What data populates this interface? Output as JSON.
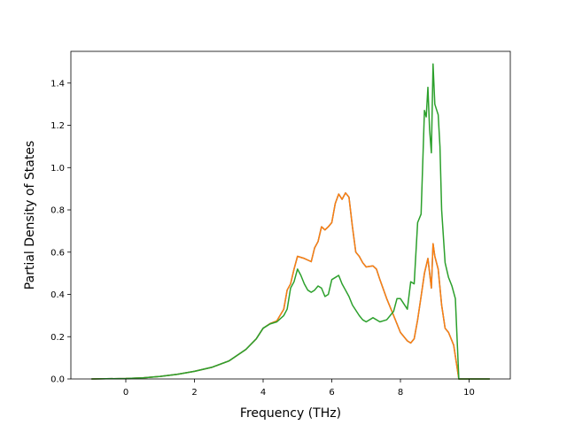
{
  "chart_data": {
    "type": "line",
    "xlabel": "Frequency (THz)",
    "ylabel": "Partial Density of States",
    "xlim": [
      -1.6,
      11.2
    ],
    "ylim": [
      0.0,
      1.55
    ],
    "xticks": [
      0,
      2,
      4,
      6,
      8,
      10
    ],
    "yticks": [
      0.0,
      0.2,
      0.4,
      0.6,
      0.8,
      1.0,
      1.2,
      1.4
    ],
    "grid": false,
    "legend": "none",
    "series": [
      {
        "color": "#1f77b4",
        "points": [
          [
            -1.0,
            0
          ],
          [
            0.0,
            0.002
          ],
          [
            0.5,
            0.005
          ],
          [
            1.0,
            0.012
          ],
          [
            1.5,
            0.022
          ],
          [
            2.0,
            0.036
          ],
          [
            2.5,
            0.055
          ],
          [
            3.0,
            0.085
          ],
          [
            3.5,
            0.14
          ],
          [
            3.8,
            0.19
          ],
          [
            4.0,
            0.24
          ],
          [
            4.2,
            0.262
          ],
          [
            4.4,
            0.275
          ],
          [
            4.6,
            0.33
          ],
          [
            4.7,
            0.42
          ],
          [
            4.8,
            0.45
          ],
          [
            4.9,
            0.52
          ],
          [
            5.0,
            0.58
          ],
          [
            5.2,
            0.57
          ],
          [
            5.4,
            0.555
          ],
          [
            5.5,
            0.62
          ],
          [
            5.6,
            0.65
          ],
          [
            5.7,
            0.72
          ],
          [
            5.8,
            0.705
          ],
          [
            5.9,
            0.72
          ],
          [
            6.0,
            0.74
          ],
          [
            6.1,
            0.83
          ],
          [
            6.2,
            0.875
          ],
          [
            6.3,
            0.85
          ],
          [
            6.4,
            0.88
          ],
          [
            6.5,
            0.86
          ],
          [
            6.6,
            0.72
          ],
          [
            6.7,
            0.6
          ],
          [
            6.8,
            0.58
          ],
          [
            6.9,
            0.55
          ],
          [
            7.0,
            0.53
          ],
          [
            7.2,
            0.535
          ],
          [
            7.3,
            0.52
          ],
          [
            7.4,
            0.47
          ],
          [
            7.6,
            0.38
          ],
          [
            7.8,
            0.3
          ],
          [
            8.0,
            0.22
          ],
          [
            8.2,
            0.18
          ],
          [
            8.3,
            0.17
          ],
          [
            8.4,
            0.19
          ],
          [
            8.5,
            0.28
          ],
          [
            8.6,
            0.39
          ],
          [
            8.7,
            0.5
          ],
          [
            8.8,
            0.57
          ],
          [
            8.9,
            0.43
          ],
          [
            8.95,
            0.64
          ],
          [
            9.0,
            0.58
          ],
          [
            9.1,
            0.52
          ],
          [
            9.2,
            0.35
          ],
          [
            9.3,
            0.24
          ],
          [
            9.4,
            0.22
          ],
          [
            9.55,
            0.16
          ],
          [
            9.7,
            0.0
          ],
          [
            10.6,
            0.0
          ]
        ]
      },
      {
        "color": "#ff7f0e",
        "points": [
          [
            -1.0,
            0
          ],
          [
            0.0,
            0.002
          ],
          [
            0.5,
            0.005
          ],
          [
            1.0,
            0.012
          ],
          [
            1.5,
            0.022
          ],
          [
            2.0,
            0.036
          ],
          [
            2.5,
            0.055
          ],
          [
            3.0,
            0.085
          ],
          [
            3.5,
            0.14
          ],
          [
            3.8,
            0.19
          ],
          [
            4.0,
            0.24
          ],
          [
            4.2,
            0.262
          ],
          [
            4.4,
            0.275
          ],
          [
            4.6,
            0.33
          ],
          [
            4.7,
            0.42
          ],
          [
            4.8,
            0.45
          ],
          [
            4.9,
            0.52
          ],
          [
            5.0,
            0.58
          ],
          [
            5.2,
            0.57
          ],
          [
            5.4,
            0.555
          ],
          [
            5.5,
            0.62
          ],
          [
            5.6,
            0.65
          ],
          [
            5.7,
            0.72
          ],
          [
            5.8,
            0.705
          ],
          [
            5.9,
            0.72
          ],
          [
            6.0,
            0.74
          ],
          [
            6.1,
            0.83
          ],
          [
            6.2,
            0.875
          ],
          [
            6.3,
            0.85
          ],
          [
            6.4,
            0.88
          ],
          [
            6.5,
            0.86
          ],
          [
            6.6,
            0.72
          ],
          [
            6.7,
            0.6
          ],
          [
            6.8,
            0.58
          ],
          [
            6.9,
            0.55
          ],
          [
            7.0,
            0.53
          ],
          [
            7.2,
            0.535
          ],
          [
            7.3,
            0.52
          ],
          [
            7.4,
            0.47
          ],
          [
            7.6,
            0.38
          ],
          [
            7.8,
            0.3
          ],
          [
            8.0,
            0.22
          ],
          [
            8.2,
            0.18
          ],
          [
            8.3,
            0.17
          ],
          [
            8.4,
            0.19
          ],
          [
            8.5,
            0.28
          ],
          [
            8.6,
            0.39
          ],
          [
            8.7,
            0.5
          ],
          [
            8.8,
            0.57
          ],
          [
            8.9,
            0.43
          ],
          [
            8.95,
            0.64
          ],
          [
            9.0,
            0.58
          ],
          [
            9.1,
            0.52
          ],
          [
            9.2,
            0.35
          ],
          [
            9.3,
            0.24
          ],
          [
            9.4,
            0.22
          ],
          [
            9.55,
            0.16
          ],
          [
            9.7,
            0.0
          ],
          [
            10.6,
            0.0
          ]
        ]
      },
      {
        "color": "#2ca02c",
        "points": [
          [
            -1.0,
            0
          ],
          [
            0.0,
            0.002
          ],
          [
            0.5,
            0.005
          ],
          [
            1.0,
            0.012
          ],
          [
            1.5,
            0.022
          ],
          [
            2.0,
            0.036
          ],
          [
            2.5,
            0.055
          ],
          [
            3.0,
            0.085
          ],
          [
            3.5,
            0.14
          ],
          [
            3.8,
            0.19
          ],
          [
            4.0,
            0.24
          ],
          [
            4.2,
            0.26
          ],
          [
            4.4,
            0.27
          ],
          [
            4.6,
            0.3
          ],
          [
            4.7,
            0.33
          ],
          [
            4.8,
            0.43
          ],
          [
            4.9,
            0.46
          ],
          [
            5.0,
            0.52
          ],
          [
            5.1,
            0.49
          ],
          [
            5.2,
            0.45
          ],
          [
            5.3,
            0.42
          ],
          [
            5.4,
            0.41
          ],
          [
            5.5,
            0.42
          ],
          [
            5.6,
            0.44
          ],
          [
            5.7,
            0.43
          ],
          [
            5.8,
            0.39
          ],
          [
            5.9,
            0.4
          ],
          [
            6.0,
            0.47
          ],
          [
            6.2,
            0.49
          ],
          [
            6.3,
            0.45
          ],
          [
            6.4,
            0.42
          ],
          [
            6.5,
            0.39
          ],
          [
            6.6,
            0.35
          ],
          [
            6.8,
            0.3
          ],
          [
            6.9,
            0.28
          ],
          [
            7.0,
            0.27
          ],
          [
            7.2,
            0.29
          ],
          [
            7.4,
            0.27
          ],
          [
            7.6,
            0.28
          ],
          [
            7.8,
            0.32
          ],
          [
            7.9,
            0.38
          ],
          [
            8.0,
            0.38
          ],
          [
            8.2,
            0.33
          ],
          [
            8.3,
            0.46
          ],
          [
            8.4,
            0.45
          ],
          [
            8.5,
            0.74
          ],
          [
            8.6,
            0.78
          ],
          [
            8.7,
            1.27
          ],
          [
            8.75,
            1.24
          ],
          [
            8.8,
            1.38
          ],
          [
            8.85,
            1.18
          ],
          [
            8.9,
            1.07
          ],
          [
            8.95,
            1.49
          ],
          [
            9.0,
            1.3
          ],
          [
            9.1,
            1.25
          ],
          [
            9.15,
            1.1
          ],
          [
            9.2,
            0.8
          ],
          [
            9.3,
            0.55
          ],
          [
            9.4,
            0.48
          ],
          [
            9.5,
            0.44
          ],
          [
            9.6,
            0.38
          ],
          [
            9.7,
            0.0
          ],
          [
            10.6,
            0.0
          ]
        ]
      }
    ]
  }
}
